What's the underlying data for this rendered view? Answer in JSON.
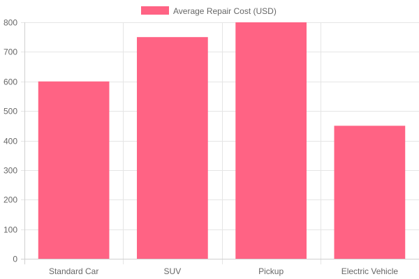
{
  "chart_data": {
    "type": "bar",
    "categories": [
      "Standard Car",
      "SUV",
      "Pickup",
      "Electric Vehicle"
    ],
    "series": [
      {
        "name": "Average Repair Cost (USD)",
        "values": [
          600,
          750,
          800,
          450
        ]
      }
    ],
    "ylim": [
      0,
      800
    ],
    "yticks": [
      0,
      100,
      200,
      300,
      400,
      500,
      600,
      700,
      800
    ],
    "grid": true,
    "legend_position": "top-center",
    "colors": {
      "bar_fill": "#ff6384",
      "grid": "#e5e5e5",
      "axis": "#d0d0d0",
      "text": "#666666"
    }
  }
}
